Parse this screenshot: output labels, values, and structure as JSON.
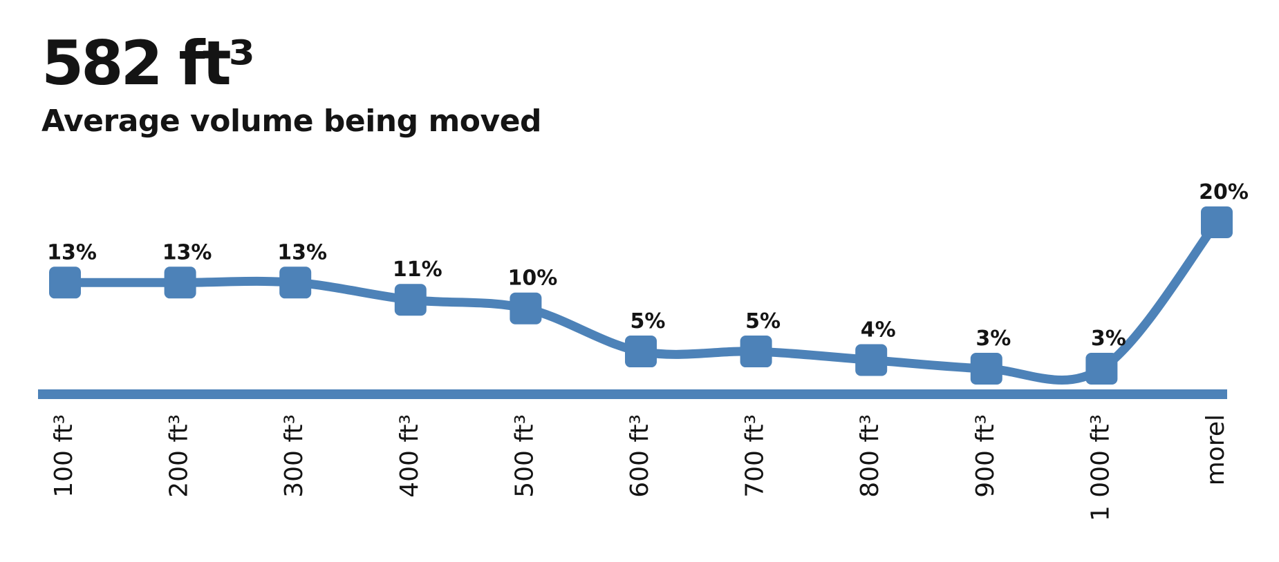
{
  "header": {
    "stat_value": "582 ft³",
    "stat_label": "Average volume being moved"
  },
  "colors": {
    "accent": "#4d82b8",
    "text": "#141414"
  },
  "chart_data": {
    "type": "line",
    "title": "Average volume being moved",
    "categories": [
      "100 ft³",
      "200 ft³",
      "300 ft³",
      "400 ft³",
      "500 ft³",
      "600 ft³",
      "700 ft³",
      "800 ft³",
      "900 ft³",
      "1 000 ft³",
      "morel"
    ],
    "values": [
      13,
      13,
      13,
      11,
      10,
      5,
      5,
      4,
      3,
      3,
      20
    ],
    "value_labels": [
      "13%",
      "13%",
      "13%",
      "11%",
      "10%",
      "5%",
      "5%",
      "4%",
      "3%",
      "3%",
      "20%"
    ],
    "unit": "%",
    "ylim": [
      0,
      20
    ],
    "marker": "square",
    "smooth": true,
    "grid": false,
    "legend": "none",
    "xlabel": "",
    "ylabel": ""
  }
}
